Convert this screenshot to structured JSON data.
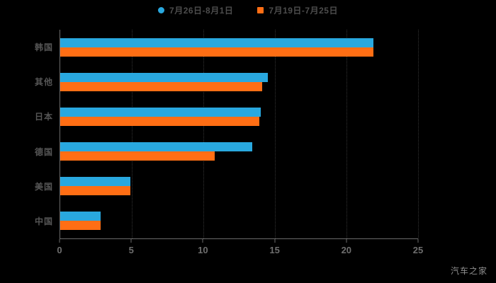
{
  "chart_data": {
    "type": "bar",
    "orientation": "horizontal",
    "title": "",
    "categories": [
      "韩国",
      "其他",
      "日本",
      "德国",
      "美国",
      "中国"
    ],
    "series": [
      {
        "name": "7月26日-8月1日",
        "marker": "circle",
        "color": "#29A8DF",
        "values": [
          21.9,
          14.5,
          14.0,
          13.4,
          4.9,
          2.8
        ]
      },
      {
        "name": "7月19日-7月25日",
        "marker": "square",
        "color": "#FF6E14",
        "values": [
          21.9,
          14.1,
          13.9,
          10.8,
          4.9,
          2.8
        ]
      }
    ],
    "xlim": [
      0,
      25
    ],
    "xticks": [
      0,
      5,
      10,
      15,
      20,
      25
    ],
    "grid": "vertical-dotted",
    "legend_position": "top-center"
  },
  "watermark": "汽车之家",
  "colors": {
    "background": "#000000",
    "axis": "#6B6B6B",
    "grid": "#333333",
    "category_label": "#565656",
    "tick_label": "#6E6E6E",
    "legend_label": "#4D4D4D",
    "watermark": "#8F8F8F"
  }
}
